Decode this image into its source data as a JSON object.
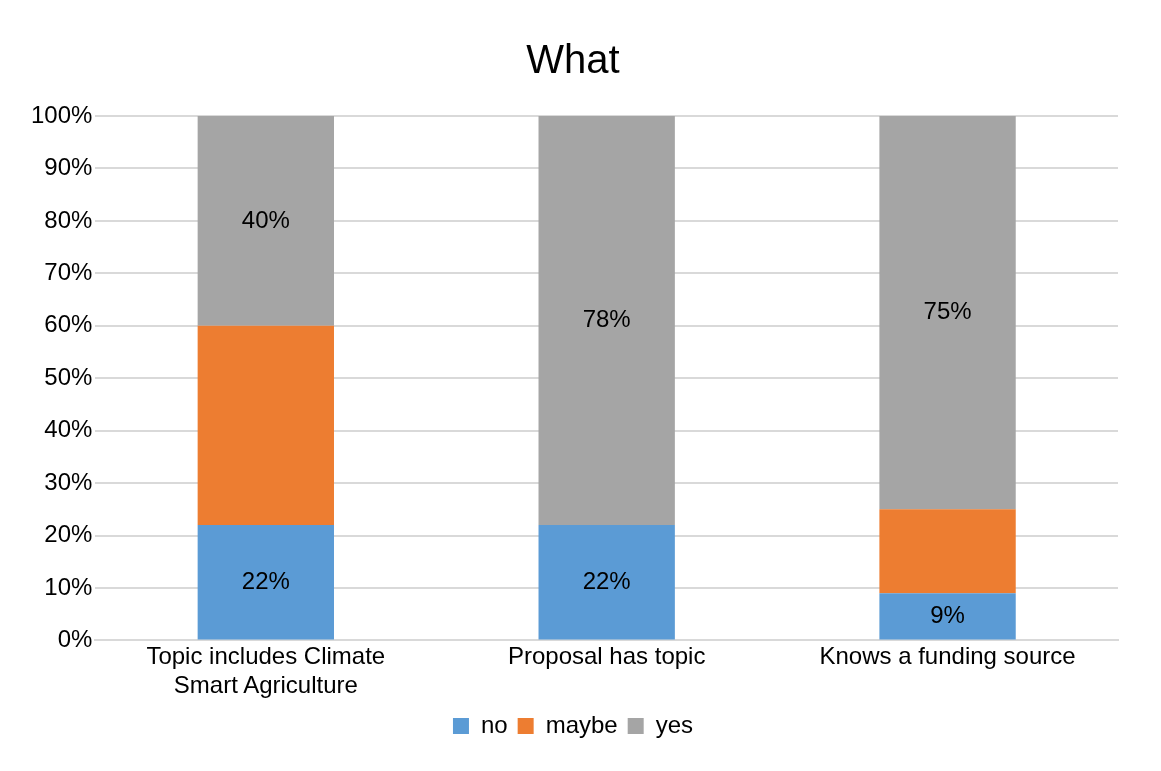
{
  "chart_data": {
    "type": "bar",
    "title": "What",
    "stacked": true,
    "categories": [
      "Topic includes Climate Smart Agriculture",
      "Proposal has topic",
      "Knows a funding source"
    ],
    "series": [
      {
        "name": "no",
        "color": "#5b9bd5",
        "values": [
          22,
          22,
          9
        ],
        "value_labels": [
          "22%",
          "22%",
          "9%"
        ]
      },
      {
        "name": "maybe",
        "color": "#ed7d31",
        "values": [
          38,
          0,
          16
        ]
      },
      {
        "name": "yes",
        "color": "#a5a5a5",
        "values": [
          40,
          78,
          75
        ],
        "value_labels": [
          "40%",
          "78%",
          "75%"
        ]
      }
    ],
    "ylim": [
      0,
      100
    ],
    "yticks": [
      {
        "value": 0,
        "label": "0%"
      },
      {
        "value": 10,
        "label": "10%"
      },
      {
        "value": 20,
        "label": "20%"
      },
      {
        "value": 30,
        "label": "30%"
      },
      {
        "value": 40,
        "label": "40%"
      },
      {
        "value": 50,
        "label": "50%"
      },
      {
        "value": 60,
        "label": "60%"
      },
      {
        "value": 70,
        "label": "70%"
      },
      {
        "value": 80,
        "label": "80%"
      },
      {
        "value": 90,
        "label": "90%"
      },
      {
        "value": 100,
        "label": "100%"
      }
    ],
    "grid": "y",
    "legend": "bottom"
  }
}
